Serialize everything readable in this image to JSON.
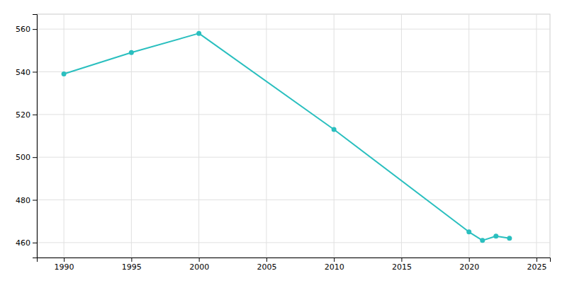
{
  "chart_data": {
    "type": "line",
    "x": [
      1990,
      1995,
      2000,
      2010,
      2020,
      2021,
      2022,
      2023
    ],
    "values": [
      539,
      549,
      558,
      513,
      465,
      461,
      463,
      462
    ],
    "color": "#2ABFBF",
    "marker": "circle",
    "xlim": [
      1988,
      2026
    ],
    "ylim": [
      453,
      567
    ],
    "xticks": [
      1990,
      1995,
      2000,
      2005,
      2010,
      2015,
      2020,
      2025
    ],
    "yticks": [
      460,
      480,
      500,
      520,
      540,
      560
    ],
    "grid": true
  }
}
